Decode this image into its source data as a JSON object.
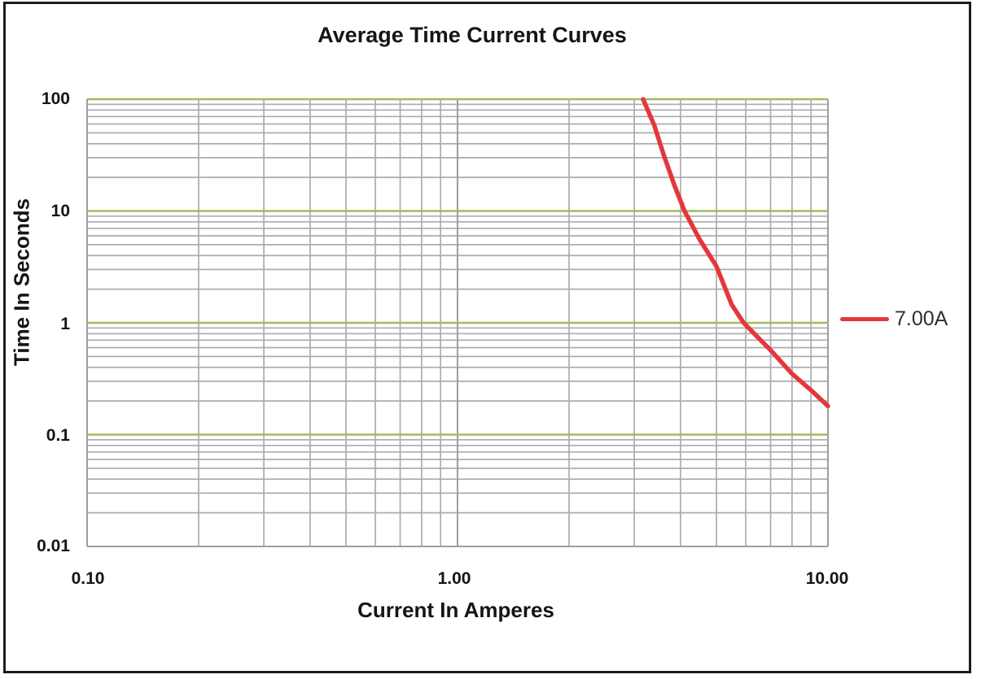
{
  "title": "Average Time Current Curves",
  "chart_data": {
    "type": "line",
    "title": "Average Time Current Curves",
    "xlabel": "Current In Amperes",
    "ylabel": "Time In Seconds",
    "x_scale": "log",
    "y_scale": "log",
    "xlim": [
      0.1,
      10
    ],
    "ylim": [
      0.01,
      100
    ],
    "x_ticks": [
      {
        "value": 0.1,
        "label": "0.10"
      },
      {
        "value": 1,
        "label": "1.00"
      },
      {
        "value": 10,
        "label": "10.00"
      }
    ],
    "y_ticks": [
      {
        "value": 100,
        "label": "100"
      },
      {
        "value": 10,
        "label": "10"
      },
      {
        "value": 1,
        "label": "1"
      },
      {
        "value": 0.1,
        "label": "0.1"
      },
      {
        "value": 0.01,
        "label": "0.01"
      }
    ],
    "grid": {
      "visible": true,
      "major_y_values": [
        0.1,
        1,
        10,
        100
      ],
      "major_color": "#9fbc5f",
      "minor_color": "#acacb0",
      "border_color": "#9e9ea2"
    },
    "legend": {
      "position": "right",
      "label": "7.00A",
      "line_color": "#e4373c"
    },
    "series": [
      {
        "name": "7.00A",
        "color": "#e4373c",
        "points": [
          [
            3.17,
            100
          ],
          [
            3.4,
            58
          ],
          [
            3.6,
            32
          ],
          [
            3.85,
            17
          ],
          [
            4.1,
            10
          ],
          [
            4.5,
            5.6
          ],
          [
            5.0,
            3.2
          ],
          [
            5.5,
            1.45
          ],
          [
            5.92,
            1.0
          ],
          [
            6.5,
            0.73
          ],
          [
            7.0,
            0.57
          ],
          [
            8.0,
            0.35
          ],
          [
            9.0,
            0.25
          ],
          [
            10.0,
            0.18
          ]
        ]
      }
    ]
  }
}
